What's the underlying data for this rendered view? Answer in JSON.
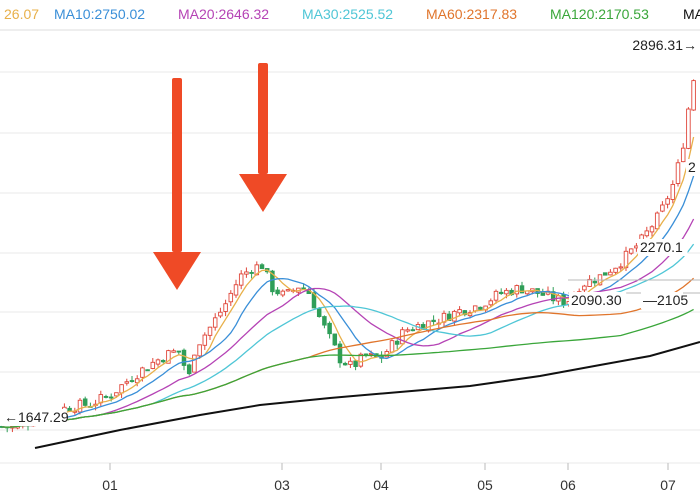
{
  "legend": [
    {
      "text": "26.07",
      "color": "#e8b04a"
    },
    {
      "text": "MA10:2750.02",
      "color": "#3a8fd8"
    },
    {
      "text": "MA20:2646.32",
      "color": "#b543b5"
    },
    {
      "text": "MA30:2525.52",
      "color": "#4fc6d6"
    },
    {
      "text": "MA60:2317.83",
      "color": "#e0752c"
    },
    {
      "text": "MA120:2170.53",
      "color": "#3aa63a"
    },
    {
      "text": "MA",
      "color": "#111111"
    }
  ],
  "annotations": {
    "max_label": "2896.31→",
    "min_label": "←1647.29",
    "label_2": "2",
    "label_2270": "2270.1",
    "label_2090": "2090.30",
    "label_2105": "—2105"
  },
  "chart_data": {
    "type": "candlestick",
    "x_tick_labels": [
      "01",
      "03",
      "04",
      "05",
      "06",
      "07"
    ],
    "ylim": [
      1550,
      3050
    ],
    "marked_high": 2896.31,
    "marked_low": 1647.29,
    "series": [
      {
        "name": "MA10",
        "value": 2750.02
      },
      {
        "name": "MA20",
        "value": 2646.32
      },
      {
        "name": "MA30",
        "value": 2525.52
      },
      {
        "name": "MA60",
        "value": 2317.83
      },
      {
        "name": "MA120",
        "value": 2170.53
      }
    ],
    "annotated_levels": [
      2270.1,
      2090.3,
      2105
    ],
    "arrows": 2
  },
  "colors": {
    "up": "#e0463a",
    "down": "#2f9e58",
    "arrow": "#ef4a26",
    "grid": "#e9e9e9",
    "black_line": "#111111"
  }
}
